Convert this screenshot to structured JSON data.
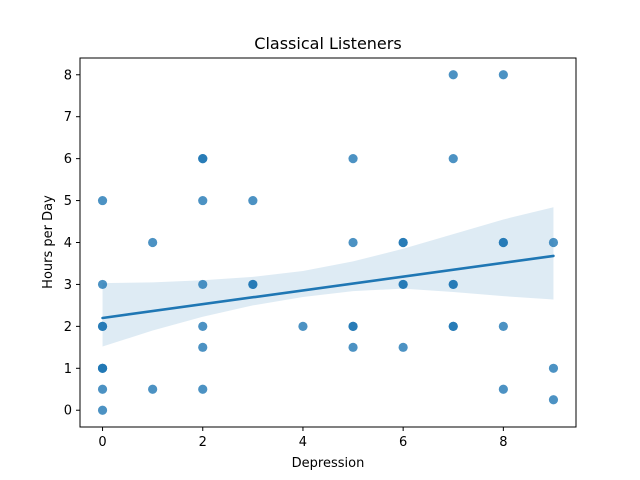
{
  "chart_data": {
    "type": "scatter",
    "title": "Classical Listeners",
    "xlabel": "Depression",
    "ylabel": "Hours per Day",
    "xlim": [
      -0.45,
      9.45
    ],
    "ylim": [
      -0.4,
      8.4
    ],
    "xticks": [
      0,
      2,
      4,
      6,
      8
    ],
    "yticks": [
      0,
      1,
      2,
      3,
      4,
      5,
      6,
      7,
      8
    ],
    "grid": false,
    "legend": false,
    "colors": {
      "points": "#1f77b4",
      "regression_line": "#1f77b4",
      "confidence_band": "#1f77b4"
    },
    "series": [
      {
        "kind": "points",
        "points": [
          {
            "x": 0,
            "y": 0
          },
          {
            "x": 0,
            "y": 0.5
          },
          {
            "x": 0,
            "y": 1
          },
          {
            "x": 0,
            "y": 1
          },
          {
            "x": 0,
            "y": 1
          },
          {
            "x": 0,
            "y": 2
          },
          {
            "x": 0,
            "y": 2
          },
          {
            "x": 0,
            "y": 3
          },
          {
            "x": 0,
            "y": 5
          },
          {
            "x": 1,
            "y": 0.5
          },
          {
            "x": 1,
            "y": 4
          },
          {
            "x": 2,
            "y": 0.5
          },
          {
            "x": 2,
            "y": 1.5
          },
          {
            "x": 2,
            "y": 2
          },
          {
            "x": 2,
            "y": 3
          },
          {
            "x": 2,
            "y": 5
          },
          {
            "x": 2,
            "y": 6
          },
          {
            "x": 2,
            "y": 6
          },
          {
            "x": 3,
            "y": 3
          },
          {
            "x": 3,
            "y": 3
          },
          {
            "x": 3,
            "y": 5
          },
          {
            "x": 4,
            "y": 2
          },
          {
            "x": 5,
            "y": 1.5
          },
          {
            "x": 5,
            "y": 2
          },
          {
            "x": 5,
            "y": 2
          },
          {
            "x": 5,
            "y": 4
          },
          {
            "x": 5,
            "y": 6
          },
          {
            "x": 6,
            "y": 1.5
          },
          {
            "x": 6,
            "y": 3
          },
          {
            "x": 6,
            "y": 3
          },
          {
            "x": 6,
            "y": 4
          },
          {
            "x": 6,
            "y": 4
          },
          {
            "x": 7,
            "y": 2
          },
          {
            "x": 7,
            "y": 2
          },
          {
            "x": 7,
            "y": 3
          },
          {
            "x": 7,
            "y": 3
          },
          {
            "x": 7,
            "y": 6
          },
          {
            "x": 7,
            "y": 8
          },
          {
            "x": 8,
            "y": 0.5
          },
          {
            "x": 8,
            "y": 2
          },
          {
            "x": 8,
            "y": 4
          },
          {
            "x": 8,
            "y": 4
          },
          {
            "x": 8,
            "y": 8
          },
          {
            "x": 9,
            "y": 0.25
          },
          {
            "x": 9,
            "y": 1
          },
          {
            "x": 9,
            "y": 4
          }
        ]
      },
      {
        "kind": "regression",
        "line": {
          "x": [
            0,
            9
          ],
          "y": [
            2.2,
            3.68
          ]
        },
        "confidence_band": [
          {
            "x": 0,
            "lower": 1.52,
            "upper": 3.03
          },
          {
            "x": 1,
            "lower": 1.9,
            "upper": 3.05
          },
          {
            "x": 2,
            "lower": 2.23,
            "upper": 3.1
          },
          {
            "x": 3,
            "lower": 2.5,
            "upper": 3.18
          },
          {
            "x": 4,
            "lower": 2.7,
            "upper": 3.32
          },
          {
            "x": 5,
            "lower": 2.84,
            "upper": 3.55
          },
          {
            "x": 6,
            "lower": 2.9,
            "upper": 3.85
          },
          {
            "x": 7,
            "lower": 2.82,
            "upper": 4.2
          },
          {
            "x": 8,
            "lower": 2.72,
            "upper": 4.55
          },
          {
            "x": 9,
            "lower": 2.64,
            "upper": 4.84
          }
        ]
      }
    ]
  }
}
